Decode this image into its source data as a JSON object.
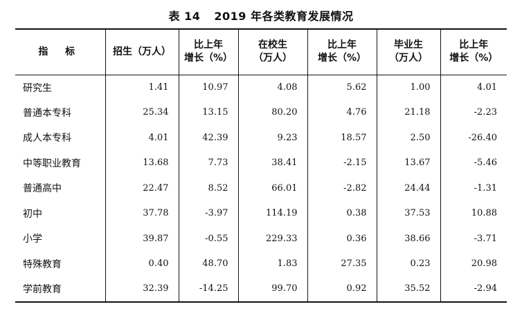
{
  "table": {
    "label": "表 14",
    "title": "2019 年各类教育发展情况",
    "headers": [
      "指 标",
      "招生（万人）",
      "比上年\n增长（%）",
      "在校生\n（万人）",
      "比上年\n增长（%）",
      "毕业生\n（万人）",
      "比上年\n增长（%）"
    ],
    "rows": [
      [
        "研究生",
        "1.41",
        "10.97",
        "4.08",
        "5.62",
        "1.00",
        "4.01"
      ],
      [
        "普通本专科",
        "25.34",
        "13.15",
        "80.20",
        "4.76",
        "21.18",
        "-2.23"
      ],
      [
        "成人本专科",
        "4.01",
        "42.39",
        "9.23",
        "18.57",
        "2.50",
        "-26.40"
      ],
      [
        "中等职业教育",
        "13.68",
        "7.73",
        "38.41",
        "-2.15",
        "13.67",
        "-5.46"
      ],
      [
        "普通高中",
        "22.47",
        "8.52",
        "66.01",
        "-2.82",
        "24.44",
        "-1.31"
      ],
      [
        "初中",
        "37.78",
        "-3.97",
        "114.19",
        "0.38",
        "37.53",
        "10.88"
      ],
      [
        "小学",
        "39.87",
        "-0.55",
        "229.33",
        "0.36",
        "38.66",
        "-3.71"
      ],
      [
        "特殊教育",
        "0.40",
        "48.70",
        "1.83",
        "27.35",
        "0.23",
        "20.98"
      ],
      [
        "学前教育",
        "32.39",
        "-14.25",
        "99.70",
        "0.92",
        "35.52",
        "-2.94"
      ]
    ]
  }
}
